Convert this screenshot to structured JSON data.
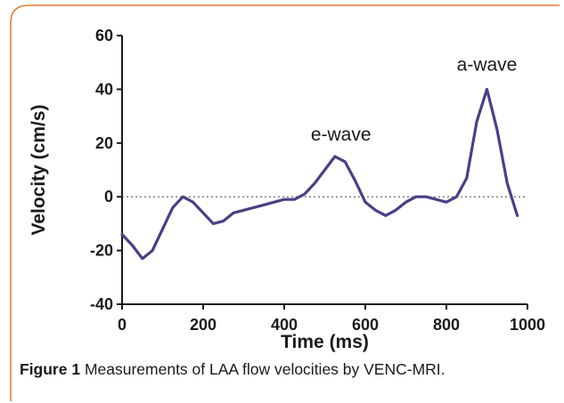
{
  "chart_data": {
    "type": "line",
    "xlabel": "Time (ms)",
    "ylabel": "Velocity (cm/s)",
    "xlim": [
      0,
      1000
    ],
    "ylim": [
      -40,
      60
    ],
    "xticks": [
      "0",
      "200",
      "400",
      "600",
      "800",
      "1000"
    ],
    "yticks": [
      "60",
      "40",
      "20",
      "0",
      "-20",
      "-40"
    ],
    "xtick_values": [
      0,
      200,
      400,
      600,
      800,
      1000
    ],
    "ytick_values": [
      60,
      40,
      20,
      0,
      -20,
      -40
    ],
    "grid": false,
    "zero_reference_line": "dotted",
    "series": [
      {
        "color": "#4a3f86",
        "x": [
          0,
          25,
          50,
          75,
          100,
          125,
          150,
          175,
          200,
          225,
          250,
          275,
          300,
          325,
          350,
          375,
          400,
          425,
          450,
          475,
          500,
          525,
          550,
          575,
          600,
          625,
          650,
          675,
          700,
          725,
          750,
          775,
          800,
          825,
          850,
          875,
          900,
          925,
          950,
          975
        ],
        "values": [
          -14,
          -18,
          -23,
          -20,
          -12,
          -4,
          0,
          -2,
          -6,
          -10,
          -9,
          -6,
          -5,
          -4,
          -3,
          -2,
          -1,
          -1,
          1,
          5,
          10,
          15,
          13,
          6,
          -2,
          -5,
          -7,
          -5,
          -2,
          0,
          0,
          -1,
          -2,
          0,
          7,
          28,
          40,
          25,
          5,
          -7
        ]
      }
    ],
    "annotations": [
      {
        "text": "e-wave",
        "x": 540,
        "y": 21
      },
      {
        "text": "a-wave",
        "x": 900,
        "y": 47
      }
    ]
  },
  "caption": {
    "label": "Figure 1",
    "text": " Measurements of LAA flow velocities by VENC-MRI."
  },
  "colors": {
    "frame": "#e07a2e",
    "line": "#4a3f86",
    "axis": "#1a1a1a"
  }
}
